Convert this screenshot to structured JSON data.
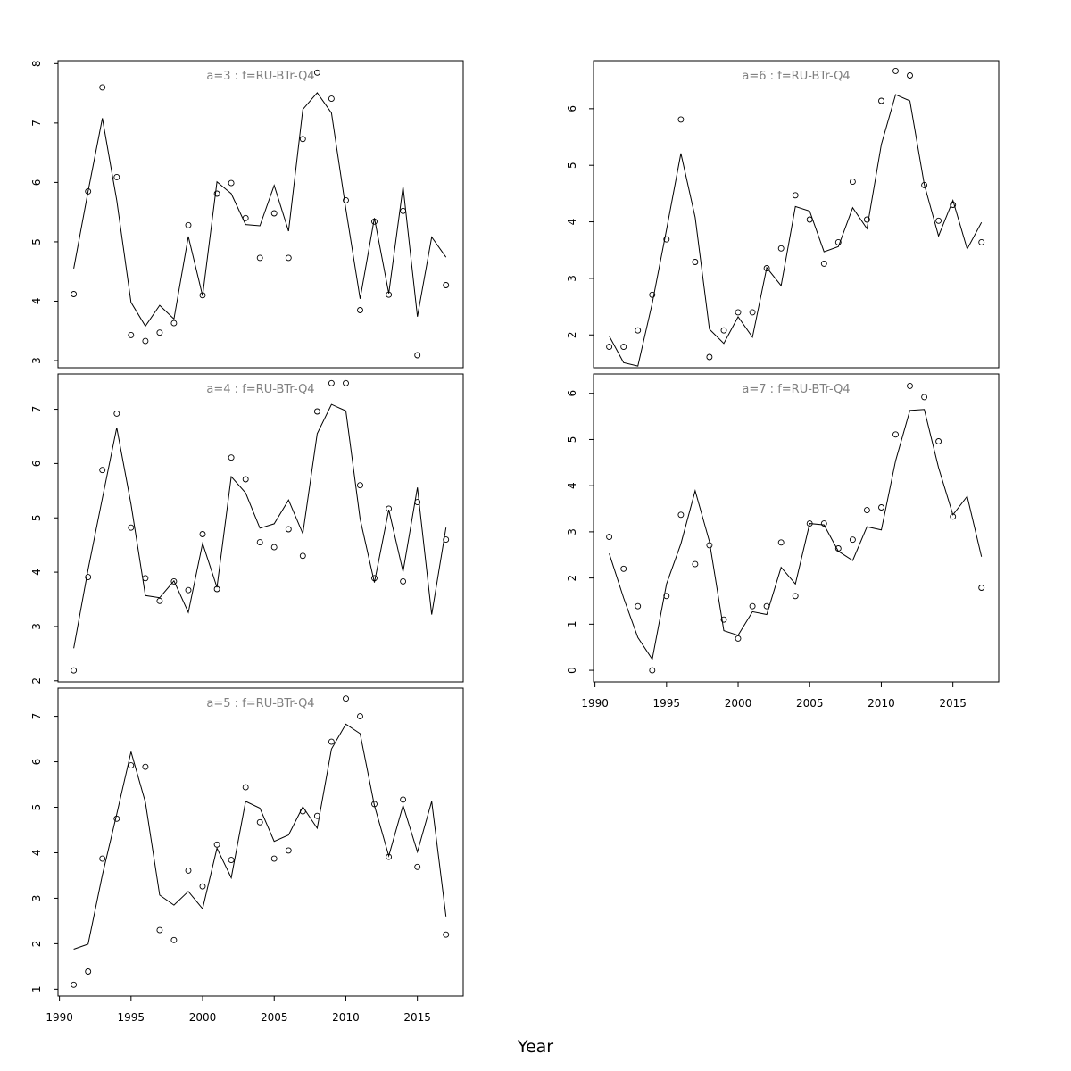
{
  "xlabel": "Year",
  "chart_data": [
    {
      "type": "scatter",
      "title": "a=3  :  f=RU-BTr-Q4",
      "ylim": [
        2.88,
        8.05
      ],
      "yticks": [
        3,
        4,
        5,
        6,
        7,
        8
      ],
      "xticks": [
        1990,
        1995,
        2000,
        2005,
        2010,
        2015
      ],
      "show_xaxis": false,
      "observed": {
        "x": [
          1991,
          1992,
          1993,
          1994,
          1995,
          1996,
          1997,
          1998,
          1999,
          2000,
          2001,
          2002,
          2003,
          2004,
          2005,
          2006,
          2007,
          2008,
          2009,
          2010,
          2011,
          2012,
          2013,
          2014,
          2015,
          2017
        ],
        "y": [
          4.12,
          5.85,
          7.6,
          6.09,
          3.43,
          3.33,
          3.47,
          3.63,
          5.28,
          4.1,
          5.81,
          5.99,
          5.4,
          4.73,
          5.48,
          4.73,
          6.73,
          7.85,
          7.41,
          5.7,
          3.85,
          5.34,
          4.11,
          5.52,
          3.09,
          4.27
        ]
      },
      "fitted": {
        "x": [
          1991,
          1992,
          1993,
          1994,
          1995,
          1996,
          1997,
          1998,
          1999,
          2000,
          2001,
          2002,
          2003,
          2004,
          2005,
          2006,
          2007,
          2008,
          2009,
          2010,
          2011,
          2012,
          2013,
          2014,
          2015,
          2016,
          2017
        ],
        "y": [
          4.55,
          5.85,
          7.08,
          5.7,
          3.98,
          3.58,
          3.93,
          3.7,
          5.09,
          4.09,
          6.01,
          5.81,
          5.29,
          5.27,
          5.95,
          5.18,
          7.23,
          7.51,
          7.17,
          5.55,
          4.04,
          5.4,
          4.13,
          5.93,
          3.74,
          5.08,
          4.74
        ]
      }
    },
    {
      "type": "scatter",
      "title": "a=4  :  f=RU-BTr-Q4",
      "ylim": [
        1.98,
        7.65
      ],
      "yticks": [
        2,
        3,
        4,
        5,
        6,
        7
      ],
      "xticks": [
        1990,
        1995,
        2000,
        2005,
        2010,
        2015
      ],
      "show_xaxis": false,
      "observed": {
        "x": [
          1991,
          1992,
          1993,
          1994,
          1995,
          1996,
          1997,
          1998,
          1999,
          2000,
          2001,
          2002,
          2003,
          2004,
          2005,
          2006,
          2007,
          2008,
          2009,
          2010,
          2011,
          2012,
          2013,
          2014,
          2015,
          2017
        ],
        "y": [
          2.19,
          3.91,
          5.88,
          6.92,
          4.82,
          3.89,
          3.47,
          3.83,
          3.67,
          4.7,
          3.69,
          6.11,
          5.71,
          4.55,
          4.46,
          4.79,
          4.3,
          6.96,
          7.48,
          7.48,
          5.6,
          3.89,
          5.17,
          3.83,
          5.29,
          4.6
        ]
      },
      "fitted": {
        "x": [
          1991,
          1992,
          1993,
          1994,
          1995,
          1996,
          1997,
          1998,
          1999,
          2000,
          2001,
          2002,
          2003,
          2004,
          2005,
          2006,
          2007,
          2008,
          2009,
          2010,
          2011,
          2012,
          2013,
          2014,
          2015,
          2016,
          2017
        ],
        "y": [
          2.6,
          4.05,
          5.36,
          6.66,
          5.25,
          3.57,
          3.53,
          3.84,
          3.26,
          4.53,
          3.72,
          5.76,
          5.46,
          4.81,
          4.89,
          5.33,
          4.71,
          6.55,
          7.09,
          6.97,
          4.98,
          3.81,
          5.15,
          4.01,
          5.56,
          3.22,
          4.82
        ]
      }
    },
    {
      "type": "scatter",
      "title": "a=5  :  f=RU-BTr-Q4",
      "ylim": [
        0.85,
        7.62
      ],
      "yticks": [
        1,
        2,
        3,
        4,
        5,
        6,
        7
      ],
      "xticks": [
        1990,
        1995,
        2000,
        2005,
        2010,
        2015
      ],
      "show_xaxis": true,
      "observed": {
        "x": [
          1991,
          1992,
          1993,
          1994,
          1995,
          1996,
          1997,
          1998,
          1999,
          2000,
          2001,
          2002,
          2003,
          2004,
          2005,
          2006,
          2007,
          2008,
          2009,
          2010,
          2011,
          2012,
          2013,
          2014,
          2015,
          2017
        ],
        "y": [
          1.1,
          1.39,
          3.87,
          4.75,
          5.92,
          5.89,
          2.3,
          2.08,
          3.61,
          3.26,
          4.18,
          3.84,
          5.44,
          4.67,
          3.87,
          4.05,
          4.91,
          4.81,
          6.44,
          7.39,
          7.0,
          5.07,
          3.91,
          5.17,
          3.69,
          2.2
        ]
      },
      "fitted": {
        "x": [
          1991,
          1992,
          1993,
          1994,
          1995,
          1996,
          1997,
          1998,
          1999,
          2000,
          2001,
          2002,
          2003,
          2004,
          2005,
          2006,
          2007,
          2008,
          2009,
          2010,
          2011,
          2012,
          2013,
          2014,
          2015,
          2016,
          2017
        ],
        "y": [
          1.88,
          1.99,
          3.51,
          4.85,
          6.22,
          5.11,
          3.07,
          2.85,
          3.15,
          2.77,
          4.1,
          3.45,
          5.13,
          4.98,
          4.25,
          4.39,
          5.01,
          4.54,
          6.28,
          6.83,
          6.62,
          5.04,
          3.93,
          5.04,
          4.02,
          5.13,
          2.6
        ]
      }
    },
    {
      "type": "scatter",
      "title": "a=6  :  f=RU-BTr-Q4",
      "ylim": [
        1.42,
        6.85
      ],
      "yticks": [
        2,
        3,
        4,
        5,
        6
      ],
      "xticks": [
        1990,
        1995,
        2000,
        2005,
        2010,
        2015
      ],
      "show_xaxis": false,
      "observed": {
        "x": [
          1991,
          1992,
          1993,
          1994,
          1995,
          1996,
          1997,
          1998,
          1999,
          2000,
          2001,
          2002,
          2003,
          2004,
          2005,
          2006,
          2007,
          2008,
          2009,
          2010,
          2011,
          2012,
          2013,
          2014,
          2015,
          2017
        ],
        "y": [
          1.79,
          1.79,
          2.08,
          2.71,
          3.69,
          5.81,
          3.29,
          1.61,
          2.08,
          2.4,
          2.4,
          3.18,
          3.53,
          4.47,
          4.04,
          3.26,
          3.64,
          4.71,
          4.04,
          6.14,
          6.67,
          6.59,
          4.65,
          4.02,
          4.3,
          3.64
        ]
      },
      "fitted": {
        "x": [
          1991,
          1992,
          1993,
          1994,
          1995,
          1996,
          1997,
          1998,
          1999,
          2000,
          2001,
          2002,
          2003,
          2004,
          2005,
          2006,
          2007,
          2008,
          2009,
          2010,
          2011,
          2012,
          2013,
          2014,
          2015,
          2016,
          2017
        ],
        "y": [
          1.98,
          1.51,
          1.45,
          2.56,
          3.86,
          5.21,
          4.08,
          2.1,
          1.85,
          2.32,
          1.96,
          3.19,
          2.87,
          4.27,
          4.19,
          3.47,
          3.56,
          4.25,
          3.88,
          5.37,
          6.25,
          6.14,
          4.66,
          3.75,
          4.38,
          3.52,
          3.99
        ]
      }
    },
    {
      "type": "scatter",
      "title": "a=7  :  f=RU-BTr-Q4",
      "ylim": [
        -0.25,
        6.42
      ],
      "yticks": [
        0,
        1,
        2,
        3,
        4,
        5,
        6
      ],
      "xticks": [
        1990,
        1995,
        2000,
        2005,
        2010,
        2015
      ],
      "show_xaxis": true,
      "observed": {
        "x": [
          1991,
          1992,
          1993,
          1994,
          1995,
          1996,
          1997,
          1998,
          1999,
          2000,
          2001,
          2002,
          2003,
          2004,
          2005,
          2006,
          2007,
          2008,
          2009,
          2010,
          2011,
          2012,
          2013,
          2014,
          2015,
          2017
        ],
        "y": [
          2.89,
          2.2,
          1.39,
          0.0,
          1.61,
          3.37,
          2.3,
          2.71,
          1.1,
          0.69,
          1.39,
          1.39,
          2.77,
          1.61,
          3.18,
          3.18,
          2.64,
          2.83,
          3.47,
          3.53,
          5.11,
          6.16,
          5.92,
          4.96,
          3.33,
          1.79
        ]
      },
      "fitted": {
        "x": [
          1991,
          1992,
          1993,
          1994,
          1995,
          1996,
          1997,
          1998,
          1999,
          2000,
          2001,
          2002,
          2003,
          2004,
          2005,
          2006,
          2007,
          2008,
          2009,
          2010,
          2011,
          2012,
          2013,
          2014,
          2015,
          2016,
          2017
        ],
        "y": [
          2.53,
          1.57,
          0.71,
          0.24,
          1.87,
          2.74,
          3.89,
          2.79,
          0.86,
          0.76,
          1.27,
          1.21,
          2.23,
          1.87,
          3.18,
          3.15,
          2.58,
          2.38,
          3.11,
          3.04,
          4.54,
          5.63,
          5.65,
          4.39,
          3.37,
          3.77,
          2.46
        ]
      }
    }
  ]
}
